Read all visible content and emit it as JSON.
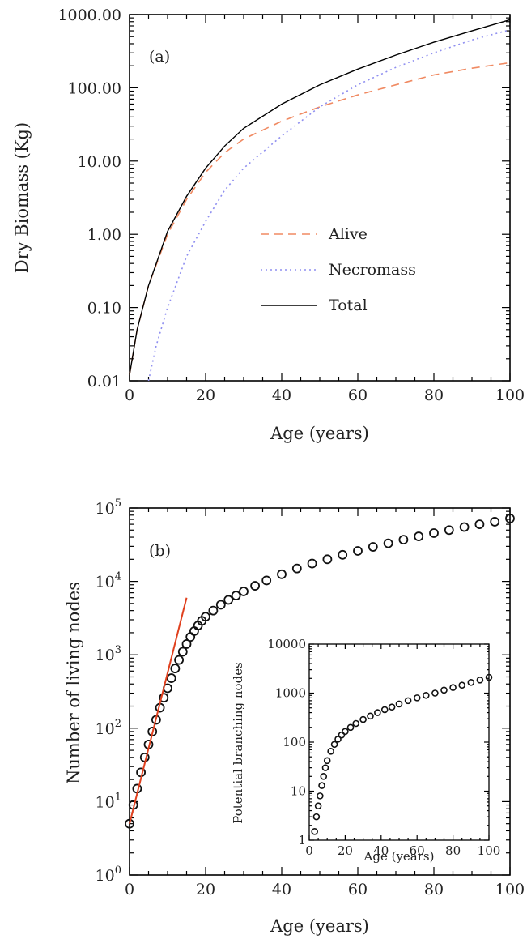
{
  "colors": {
    "alive": "#f08a62",
    "necromass": "#8f8ff0",
    "total": "#000000",
    "fit_line": "#e0401e",
    "markers": "#111111"
  },
  "chart_data": [
    {
      "panel_label": "(a)",
      "type": "line",
      "xlabel": "Age (years)",
      "ylabel": "Dry Biomass (Kg)",
      "xlim": [
        0,
        100
      ],
      "ylim": [
        0.01,
        1000
      ],
      "yscale": "log",
      "x_tick_labels": [
        "0",
        "20",
        "40",
        "60",
        "80",
        "100"
      ],
      "y_tick_labels": [
        "0.01",
        "0.10",
        "1.00",
        "10.00",
        "100.00",
        "1000.00"
      ],
      "legend_position": "center-right",
      "series": [
        {
          "name": "Alive",
          "style": "dashed",
          "x": [
            0,
            2,
            5,
            10,
            15,
            20,
            25,
            30,
            40,
            50,
            60,
            70,
            80,
            90,
            100
          ],
          "y": [
            0.012,
            0.05,
            0.2,
            1.0,
            3.0,
            7.0,
            13.0,
            20.0,
            35.0,
            55.0,
            80.0,
            110.0,
            150.0,
            185.0,
            220.0
          ]
        },
        {
          "name": "Necromass",
          "style": "dotted",
          "x": [
            5,
            7,
            10,
            15,
            20,
            25,
            30,
            40,
            50,
            60,
            70,
            80,
            90,
            100
          ],
          "y": [
            0.01,
            0.03,
            0.1,
            0.5,
            1.5,
            4.0,
            8.0,
            22.0,
            55.0,
            110.0,
            190.0,
            300.0,
            450.0,
            620.0
          ]
        },
        {
          "name": "Total",
          "style": "solid",
          "x": [
            0,
            2,
            5,
            10,
            15,
            20,
            25,
            30,
            40,
            50,
            60,
            70,
            80,
            90,
            100
          ],
          "y": [
            0.012,
            0.05,
            0.2,
            1.1,
            3.3,
            8.0,
            16.0,
            28.0,
            60.0,
            110.0,
            180.0,
            280.0,
            420.0,
            600.0,
            850.0
          ]
        }
      ]
    },
    {
      "panel_label": "(b)",
      "type": "scatter",
      "xlabel": "Age (years)",
      "ylabel": "Number of living nodes",
      "xlim": [
        0,
        100
      ],
      "ylim": [
        1,
        100000
      ],
      "yscale": "log",
      "x_tick_labels": [
        "0",
        "20",
        "40",
        "60",
        "80",
        "100"
      ],
      "y_tick_labels": [
        {
          "base": "10",
          "exp": "0"
        },
        {
          "base": "10",
          "exp": "1"
        },
        {
          "base": "10",
          "exp": "2"
        },
        {
          "base": "10",
          "exp": "3"
        },
        {
          "base": "10",
          "exp": "4"
        },
        {
          "base": "10",
          "exp": "5"
        }
      ],
      "series": [
        {
          "type": "scatter",
          "x": [
            0,
            1,
            2,
            3,
            4,
            5,
            6,
            7,
            8,
            9,
            10,
            11,
            12,
            13,
            14,
            15,
            16,
            17,
            18,
            19,
            20,
            22,
            24,
            26,
            28,
            30,
            33,
            36,
            40,
            44,
            48,
            52,
            56,
            60,
            64,
            68,
            72,
            76,
            80,
            84,
            88,
            92,
            96,
            100
          ],
          "y": [
            5,
            9,
            15,
            25,
            40,
            60,
            90,
            130,
            190,
            260,
            350,
            480,
            650,
            850,
            1100,
            1400,
            1750,
            2100,
            2500,
            2900,
            3300,
            4000,
            4800,
            5600,
            6400,
            7300,
            8700,
            10300,
            12500,
            15000,
            17500,
            20000,
            23000,
            26000,
            29500,
            33000,
            37000,
            41000,
            45500,
            50000,
            55000,
            60000,
            65000,
            72000
          ]
        },
        {
          "type": "line",
          "x": [
            0,
            15
          ],
          "y": [
            5,
            6000
          ]
        }
      ],
      "inset": {
        "type": "scatter",
        "xlabel": "Age (years)",
        "ylabel": "Potential branching nodes",
        "xlim": [
          0,
          100
        ],
        "ylim": [
          1,
          10000
        ],
        "yscale": "log",
        "x_tick_labels": [
          "0",
          "20",
          "40",
          "60",
          "80",
          "100"
        ],
        "y_tick_labels": [
          "1",
          "10",
          "100",
          "1000",
          "10000"
        ],
        "series": [
          {
            "type": "scatter",
            "x": [
              3,
              4,
              5,
              6,
              7,
              8,
              9,
              10,
              12,
              14,
              16,
              18,
              20,
              23,
              26,
              30,
              34,
              38,
              42,
              46,
              50,
              55,
              60,
              65,
              70,
              75,
              80,
              85,
              90,
              95,
              100
            ],
            "y": [
              1.5,
              3,
              5,
              8,
              13,
              20,
              30,
              42,
              65,
              90,
              115,
              140,
              165,
              200,
              240,
              290,
              340,
              400,
              460,
              520,
              600,
              700,
              800,
              900,
              1000,
              1150,
              1300,
              1450,
              1650,
              1850,
              2100
            ]
          }
        ]
      }
    }
  ]
}
